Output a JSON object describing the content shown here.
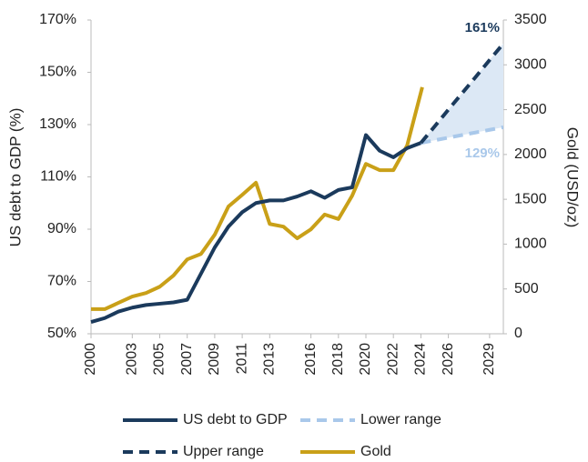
{
  "chart_data": {
    "type": "line",
    "ylabel": "US debt to GDP (%)",
    "y2label": "Gold (USD/oz)",
    "xlim": [
      2000,
      2030
    ],
    "xticks": [
      2000,
      2003,
      2005,
      2007,
      2009,
      2011,
      2013,
      2016,
      2018,
      2020,
      2022,
      2024,
      2026,
      2029
    ],
    "ylim": [
      50,
      170
    ],
    "yticks": [
      {
        "value": 50,
        "label": "50%"
      },
      {
        "value": 70,
        "label": "70%"
      },
      {
        "value": 90,
        "label": "90%"
      },
      {
        "value": 110,
        "label": "110%"
      },
      {
        "value": 130,
        "label": "130%"
      },
      {
        "value": 150,
        "label": "150%"
      },
      {
        "value": 170,
        "label": "170%"
      }
    ],
    "y2lim": [
      0,
      3500
    ],
    "y2ticks": [
      0,
      500,
      1000,
      1500,
      2000,
      2500,
      3000,
      3500
    ],
    "range_fill": "#dce8f5",
    "series": [
      {
        "name": "US debt to GDP",
        "color": "#1b3a5c",
        "dash": false,
        "x": [
          2000,
          2001,
          2002,
          2003,
          2004,
          2005,
          2006,
          2007,
          2008,
          2009,
          2010,
          2011,
          2012,
          2013,
          2014,
          2015,
          2016,
          2017,
          2018,
          2019,
          2020,
          2021,
          2022,
          2023,
          2024
        ],
        "values": [
          54.5,
          56,
          58.5,
          60,
          61,
          61.5,
          62,
          63,
          73,
          83,
          91,
          96.5,
          100,
          101,
          101,
          102.5,
          104.5,
          102,
          105,
          106,
          126,
          120,
          117.5,
          121,
          123
        ]
      },
      {
        "name": "Lower range",
        "color": "#a9c8ea",
        "dash": true,
        "x": [
          2024,
          2025,
          2026,
          2027,
          2028,
          2029,
          2030
        ],
        "values": [
          123,
          124,
          125,
          126,
          127,
          128,
          129
        ],
        "value_labels": [
          null,
          null,
          null,
          null,
          null,
          null,
          "129%"
        ]
      },
      {
        "name": "Upper range",
        "color": "#1b3a5c",
        "dash": true,
        "x": [
          2024,
          2025,
          2026,
          2027,
          2028,
          2029,
          2030
        ],
        "values": [
          123,
          129.3,
          135.7,
          142,
          148.3,
          154.7,
          161
        ],
        "value_labels": [
          null,
          null,
          null,
          null,
          null,
          null,
          "161%"
        ]
      },
      {
        "name": "Gold",
        "color": "#c9a018",
        "dash": false,
        "axis": "y2",
        "x": [
          2000,
          2001,
          2002,
          2003,
          2004,
          2005,
          2006,
          2007,
          2008,
          2009,
          2010,
          2011,
          2012,
          2013,
          2014,
          2015,
          2016,
          2017,
          2018,
          2019,
          2020,
          2021,
          2022,
          2023,
          2024.1
        ],
        "values": [
          275,
          275,
          345,
          415,
          455,
          525,
          650,
          830,
          890,
          1105,
          1420,
          1550,
          1685,
          1225,
          1195,
          1065,
          1165,
          1330,
          1280,
          1540,
          1895,
          1825,
          1825,
          2100,
          2750
        ]
      }
    ]
  }
}
